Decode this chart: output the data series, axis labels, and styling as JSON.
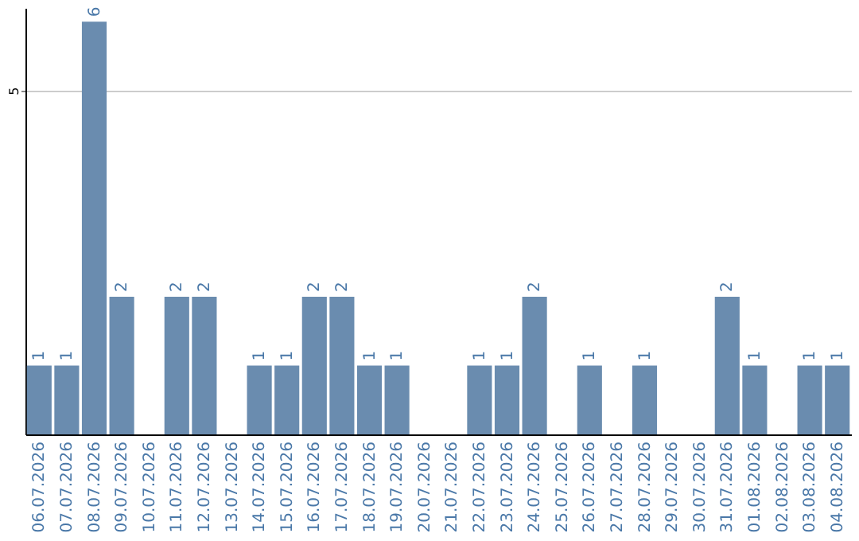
{
  "chart_data": {
    "type": "bar",
    "categories": [
      "06.07.2026",
      "07.07.2026",
      "08.07.2026",
      "09.07.2026",
      "10.07.2026",
      "11.07.2026",
      "12.07.2026",
      "13.07.2026",
      "14.07.2026",
      "15.07.2026",
      "16.07.2026",
      "17.07.2026",
      "18.07.2026",
      "19.07.2026",
      "20.07.2026",
      "21.07.2026",
      "22.07.2026",
      "23.07.2026",
      "24.07.2026",
      "25.07.2026",
      "26.07.2026",
      "27.07.2026",
      "28.07.2026",
      "29.07.2026",
      "30.07.2026",
      "31.07.2026",
      "01.08.2026",
      "02.08.2026",
      "03.08.2026",
      "04.08.2026"
    ],
    "values": [
      1,
      1,
      6,
      2,
      0,
      2,
      2,
      0,
      1,
      1,
      2,
      2,
      1,
      1,
      0,
      0,
      1,
      1,
      2,
      0,
      1,
      0,
      1,
      0,
      0,
      2,
      1,
      0,
      1,
      1
    ],
    "value_labels": [
      "1",
      "1",
      "6",
      "2",
      null,
      "2",
      "2",
      null,
      "1",
      "1",
      "2",
      "2",
      "1",
      "1",
      null,
      null,
      "1",
      "1",
      "2",
      null,
      "1",
      null,
      "1",
      null,
      null,
      "2",
      "1",
      null,
      "1",
      "1"
    ],
    "color": "#6a8caf",
    "ylim": [
      0,
      6.2
    ],
    "yticks": [
      5
    ],
    "grid": "y"
  }
}
